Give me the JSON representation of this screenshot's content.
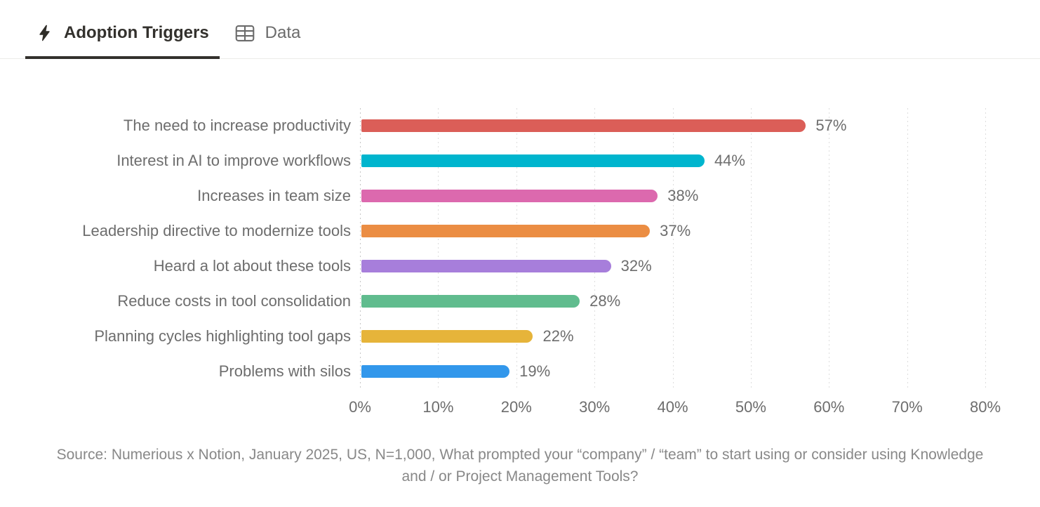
{
  "tabs": [
    {
      "label": "Adoption Triggers",
      "icon": "lightning-icon",
      "active": true
    },
    {
      "label": "Data",
      "icon": "table-icon",
      "active": false
    }
  ],
  "colors": {
    "tab_active_text": "#33312d",
    "tab_inactive_text": "#6b6b6b",
    "tab_underline": "#33312d",
    "label_text": "#6d6d6d",
    "grid_line": "#dddddd",
    "axis_line": "#c6c6c6",
    "source_text": "#888888"
  },
  "chart_data": {
    "type": "bar",
    "orientation": "horizontal",
    "categories": [
      "The need to increase productivity",
      "Interest in AI to improve workflows",
      "Increases in team size",
      "Leadership directive to modernize tools",
      "Heard a lot about these tools",
      "Reduce costs in tool consolidation",
      "Planning cycles highlighting tool gaps",
      "Problems with silos"
    ],
    "values": [
      57,
      44,
      38,
      37,
      32,
      28,
      22,
      19
    ],
    "value_labels": [
      "57%",
      "44%",
      "38%",
      "37%",
      "32%",
      "28%",
      "22%",
      "19%"
    ],
    "bar_colors": [
      "#db5e58",
      "#00b5ce",
      "#dc69ae",
      "#eb8d43",
      "#a77edb",
      "#60bc8e",
      "#e6b43a",
      "#3297eb"
    ],
    "x_ticks": [
      "0%",
      "10%",
      "20%",
      "30%",
      "40%",
      "50%",
      "60%",
      "70%",
      "80%"
    ],
    "xlim": [
      0,
      80
    ],
    "grid": "dotted-vertical",
    "legend": "none",
    "title": "",
    "xlabel": "",
    "ylabel": "",
    "source": "Source: Numerious x Notion, January 2025, US, N=1,000, What prompted your “company” / “team” to start using or consider using Knowledge and / or Project Management Tools?"
  }
}
